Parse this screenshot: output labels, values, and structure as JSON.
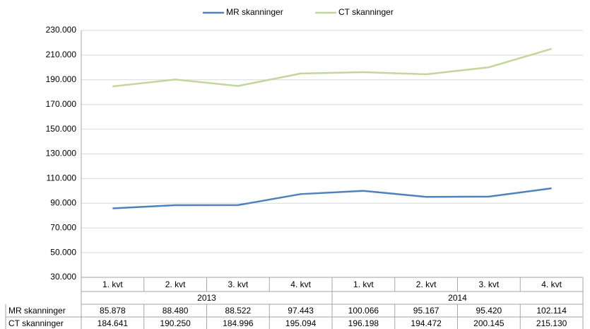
{
  "chart_data": {
    "type": "line",
    "categories": [
      "1. kvt",
      "2. kvt",
      "3. kvt",
      "4. kvt",
      "1. kvt",
      "2. kvt",
      "3. kvt",
      "4. kvt"
    ],
    "category_groups": [
      "2013",
      "2014"
    ],
    "series": [
      {
        "name": "MR skanninger",
        "color": "#4f81bd",
        "values": [
          85878,
          88480,
          88522,
          97443,
          100066,
          95167,
          95420,
          102114
        ],
        "value_labels": [
          "85.878",
          "88.480",
          "88.522",
          "97.443",
          "100.066",
          "95.167",
          "95.420",
          "102.114"
        ]
      },
      {
        "name": "CT skanninger",
        "color": "#c3d69b",
        "values": [
          184641,
          190250,
          184996,
          195094,
          196198,
          194472,
          200145,
          215130
        ],
        "value_labels": [
          "184.641",
          "190.250",
          "184.996",
          "195.094",
          "196.198",
          "194.472",
          "200.145",
          "215.130"
        ]
      }
    ],
    "ylim": [
      30000,
      230000
    ],
    "yticks": [
      {
        "value": 30000,
        "label": "30.000"
      },
      {
        "value": 50000,
        "label": "50.000"
      },
      {
        "value": 70000,
        "label": "70.000"
      },
      {
        "value": 90000,
        "label": "90.000"
      },
      {
        "value": 110000,
        "label": "110.000"
      },
      {
        "value": 130000,
        "label": "130.000"
      },
      {
        "value": 150000,
        "label": "150.000"
      },
      {
        "value": 170000,
        "label": "170.000"
      },
      {
        "value": 190000,
        "label": "190.000"
      },
      {
        "value": 210000,
        "label": "210.000"
      },
      {
        "value": 230000,
        "label": "230.000"
      }
    ],
    "grid": true,
    "legend": "top"
  }
}
